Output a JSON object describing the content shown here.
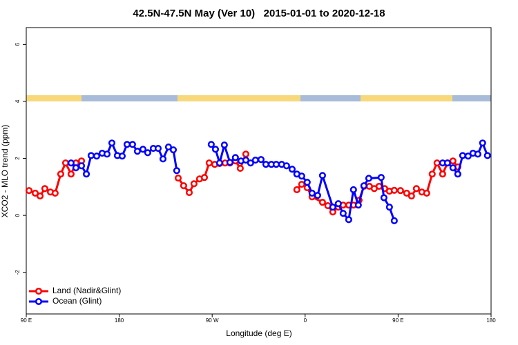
{
  "chart_data": {
    "type": "line",
    "title": "42.5N-47.5N May (Ver 10)   2015-01-01 to 2020-12-18",
    "x_label": "Longitude (deg E)",
    "y_label": "XCO2 - MLO trend (ppm)",
    "xlim": [
      90,
      540
    ],
    "ylim": [
      -3.46,
      6.59
    ],
    "xticks": [
      {
        "value": 90,
        "label": "90 E"
      },
      180,
      {
        "value": 270,
        "label": "90 W"
      },
      {
        "value": 360,
        "label": "0"
      },
      {
        "value": 450,
        "label": "90 E"
      },
      {
        "value": 540,
        "label": "180"
      }
    ],
    "yticks": [
      -2,
      0,
      2,
      4,
      6
    ],
    "legend": "bottom-left",
    "series": [
      {
        "name": "Land (Nadir&Glint)",
        "color": "#ff0000",
        "x": [
          92.7,
          98.7,
          103.4,
          108,
          113.4,
          118,
          123.4,
          128.1,
          133.4,
          138.1,
          143.5,
          null,
          237.1,
          242.4,
          247.8,
          252.4,
          257.8,
          262.5,
          267.1,
          272.5,
          277.2,
          282.5,
          287.2,
          292.5,
          297.2,
          302.6,
          null,
          352,
          356.7,
          362,
          366.7,
          376.8,
          382,
          386.8,
          392.1,
          396.8,
          402.2,
          406.8,
          412.2,
          416.9,
          422.2,
          426.9,
          431.6,
          437,
          441.6,
          446.3,
          452.3,
          458.3,
          463,
          467.7,
          473,
          477.7,
          483,
          487.7,
          493.1,
          497.8,
          503.1,
          507.8
        ],
        "values": [
          0.87,
          0.78,
          0.68,
          0.94,
          0.82,
          0.78,
          1.45,
          1.84,
          1.45,
          1.84,
          1.91,
          null,
          1.31,
          1.04,
          0.8,
          1.11,
          1.28,
          1.33,
          1.84,
          1.79,
          1.82,
          1.84,
          1.84,
          1.91,
          1.65,
          2.15,
          null,
          0.9,
          1.09,
          0.97,
          0.65,
          0.46,
          0.34,
          0.12,
          0.29,
          0.36,
          0.36,
          0.36,
          0.53,
          1.02,
          1.02,
          0.94,
          1.02,
          0.94,
          0.85,
          0.88,
          0.87,
          0.78,
          0.68,
          0.94,
          0.82,
          0.78,
          1.45,
          1.84,
          1.45,
          1.84,
          1.91,
          1.7
        ]
      },
      {
        "name": "Ocean (Glint)",
        "color": "#0000ff",
        "x": [
          133.4,
          138.1,
          143.5,
          148.2,
          152.8,
          158.2,
          163.5,
          168.2,
          172.9,
          178.2,
          182.9,
          187.6,
          192.9,
          197.6,
          203,
          207.6,
          213,
          217.7,
          222.4,
          227.7,
          232.4,
          235.7,
          null,
          269.1,
          273.2,
          277.2,
          281.8,
          287.2,
          292.5,
          297.9,
          302.6,
          307.2,
          311.9,
          317.3,
          322,
          327.3,
          332,
          337.3,
          342,
          347.4,
          352,
          356.7,
          362,
          366.7,
          372.1,
          376.8,
          386.8,
          392.1,
          396.8,
          402.2,
          406.8,
          411.5,
          416.9,
          421.6,
          433.6,
          436.3,
          441.6,
          446.3,
          null,
          493.1,
          497.8,
          503.1,
          507.8,
          512.5,
          517.8,
          522.5,
          527.2,
          531.8,
          536.5
        ],
        "values": [
          1.84,
          1.67,
          1.74,
          1.45,
          2.1,
          2.08,
          2.18,
          2.15,
          2.54,
          2.1,
          2.08,
          2.49,
          2.49,
          2.25,
          2.32,
          2.2,
          2.35,
          2.35,
          1.98,
          2.4,
          2.3,
          1.57,
          null,
          2.49,
          2.32,
          1.84,
          2.47,
          1.86,
          2.03,
          1.91,
          1.94,
          1.84,
          1.94,
          1.96,
          1.79,
          1.79,
          1.79,
          1.79,
          1.74,
          1.62,
          1.45,
          1.38,
          1.16,
          0.78,
          0.7,
          1.4,
          0.29,
          0.41,
          0.07,
          -0.15,
          0.9,
          0.36,
          1.04,
          1.3,
          1.33,
          0.62,
          0.29,
          -0.19,
          null,
          1.84,
          1.84,
          1.67,
          1.45,
          2.1,
          2.08,
          2.18,
          2.15,
          2.54,
          2.1
        ]
      }
    ]
  }
}
